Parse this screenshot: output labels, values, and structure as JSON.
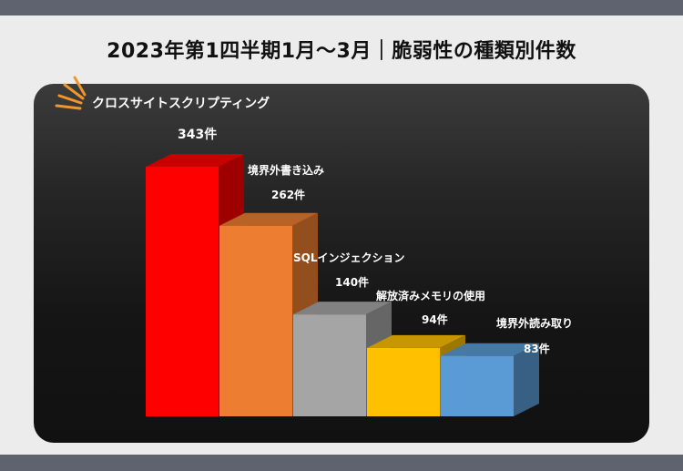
{
  "page": {
    "title": "2023年第1四半期1月〜3月｜脆弱性の種類別件数"
  },
  "colors": {
    "panel": "#1a1a1a",
    "accent": "#f0962a",
    "text": "#ffffff"
  },
  "chart_data": {
    "type": "bar",
    "title": "クロスサイトスクリプティング",
    "categories": [
      "クロスサイトスクリプティング",
      "境界外書き込み",
      "SQLインジェクション",
      "解放済みメモリの使用",
      "境界外読み取り"
    ],
    "values": [
      343,
      262,
      140,
      94,
      83
    ],
    "value_labels": [
      "343件",
      "262件",
      "140件",
      "94件",
      "83件"
    ],
    "bar_colors": [
      "#ff0000",
      "#ed7d31",
      "#a5a5a5",
      "#ffc000",
      "#5b9bd5"
    ],
    "style": "3d",
    "xlabel": "",
    "ylabel": "",
    "ylim": [
      0,
      343
    ],
    "grid": false,
    "legend": "none"
  }
}
